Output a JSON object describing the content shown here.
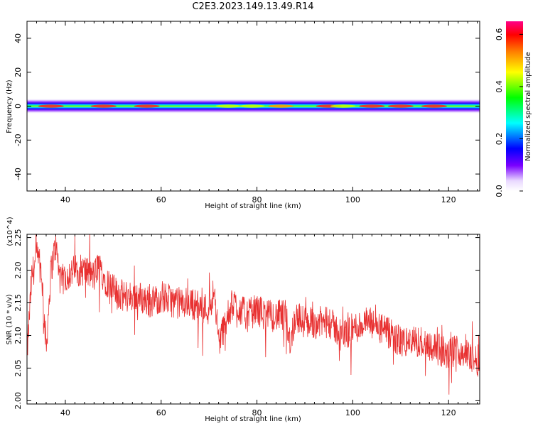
{
  "title": "C2E3.2023.149.13.49.R14",
  "colors": {
    "snr_line": "#e83030",
    "axis": "#000000"
  },
  "chart_data": [
    {
      "type": "heatmap",
      "title": "C2E3.2023.149.13.49.R14",
      "xlabel": "Height of straight line (km)",
      "ylabel": "Frequency (Hz)",
      "xlim": [
        32,
        126.5
      ],
      "ylim": [
        -50,
        50
      ],
      "xticks": [
        40,
        60,
        80,
        100,
        120
      ],
      "yticks": [
        -40,
        -20,
        0,
        20,
        40
      ],
      "band": {
        "center_hz": 0,
        "halfwidth_hz": 4.5
      },
      "hotspots_km": [
        {
          "x": 37,
          "amp": 0.6
        },
        {
          "x": 48,
          "amp": 0.65
        },
        {
          "x": 57,
          "amp": 0.6
        },
        {
          "x": 74,
          "amp": 0.45
        },
        {
          "x": 79,
          "amp": 0.45
        },
        {
          "x": 85,
          "amp": 0.55
        },
        {
          "x": 95,
          "amp": 0.6
        },
        {
          "x": 98,
          "amp": 0.45
        },
        {
          "x": 104,
          "amp": 0.65
        },
        {
          "x": 110,
          "amp": 0.6
        },
        {
          "x": 117,
          "amp": 0.65
        }
      ],
      "colorbar": {
        "label": "Normalized spectral amplitude",
        "range": [
          0.0,
          0.65
        ],
        "ticks": [
          "0.0",
          "0.2",
          "0.4",
          "0.6"
        ],
        "tick_values": [
          0.0,
          0.2,
          0.4,
          0.6
        ],
        "colormap": "hsv"
      }
    },
    {
      "type": "line",
      "xlabel": "Height of straight line (km)",
      "ylabel": "SNR (10 * v/v)",
      "scale_label": "(x10^4)",
      "xlim": [
        32,
        126.5
      ],
      "ylim": [
        1.995,
        2.255
      ],
      "xticks": [
        40,
        60,
        80,
        100,
        120
      ],
      "yticks": [
        "2.00",
        "2.05",
        "2.10",
        "2.15",
        "2.20",
        "2.25"
      ],
      "ytick_values": [
        2.0,
        2.05,
        2.1,
        2.15,
        2.2,
        2.25
      ],
      "series": [
        {
          "x": [
            32,
            33,
            34,
            35,
            36,
            37,
            38,
            39,
            40,
            42,
            44,
            46,
            47,
            48,
            50,
            52,
            55,
            58,
            60,
            63,
            66,
            70,
            71,
            72,
            75,
            78,
            80,
            82,
            84,
            86,
            87,
            88,
            90,
            92,
            95,
            98,
            100,
            103,
            106,
            110,
            115,
            120,
            122,
            124,
            126.5
          ],
          "y": [
            2.07,
            2.19,
            2.22,
            2.2,
            2.08,
            2.2,
            2.24,
            2.18,
            2.19,
            2.2,
            2.2,
            2.19,
            2.21,
            2.19,
            2.17,
            2.16,
            2.16,
            2.15,
            2.16,
            2.15,
            2.15,
            2.14,
            2.17,
            2.09,
            2.15,
            2.13,
            2.14,
            2.13,
            2.13,
            2.13,
            2.09,
            2.13,
            2.12,
            2.12,
            2.12,
            2.1,
            2.11,
            2.12,
            2.11,
            2.09,
            2.09,
            2.07,
            2.08,
            2.07,
            2.06
          ],
          "noise_amplitude": 0.025
        }
      ]
    }
  ]
}
